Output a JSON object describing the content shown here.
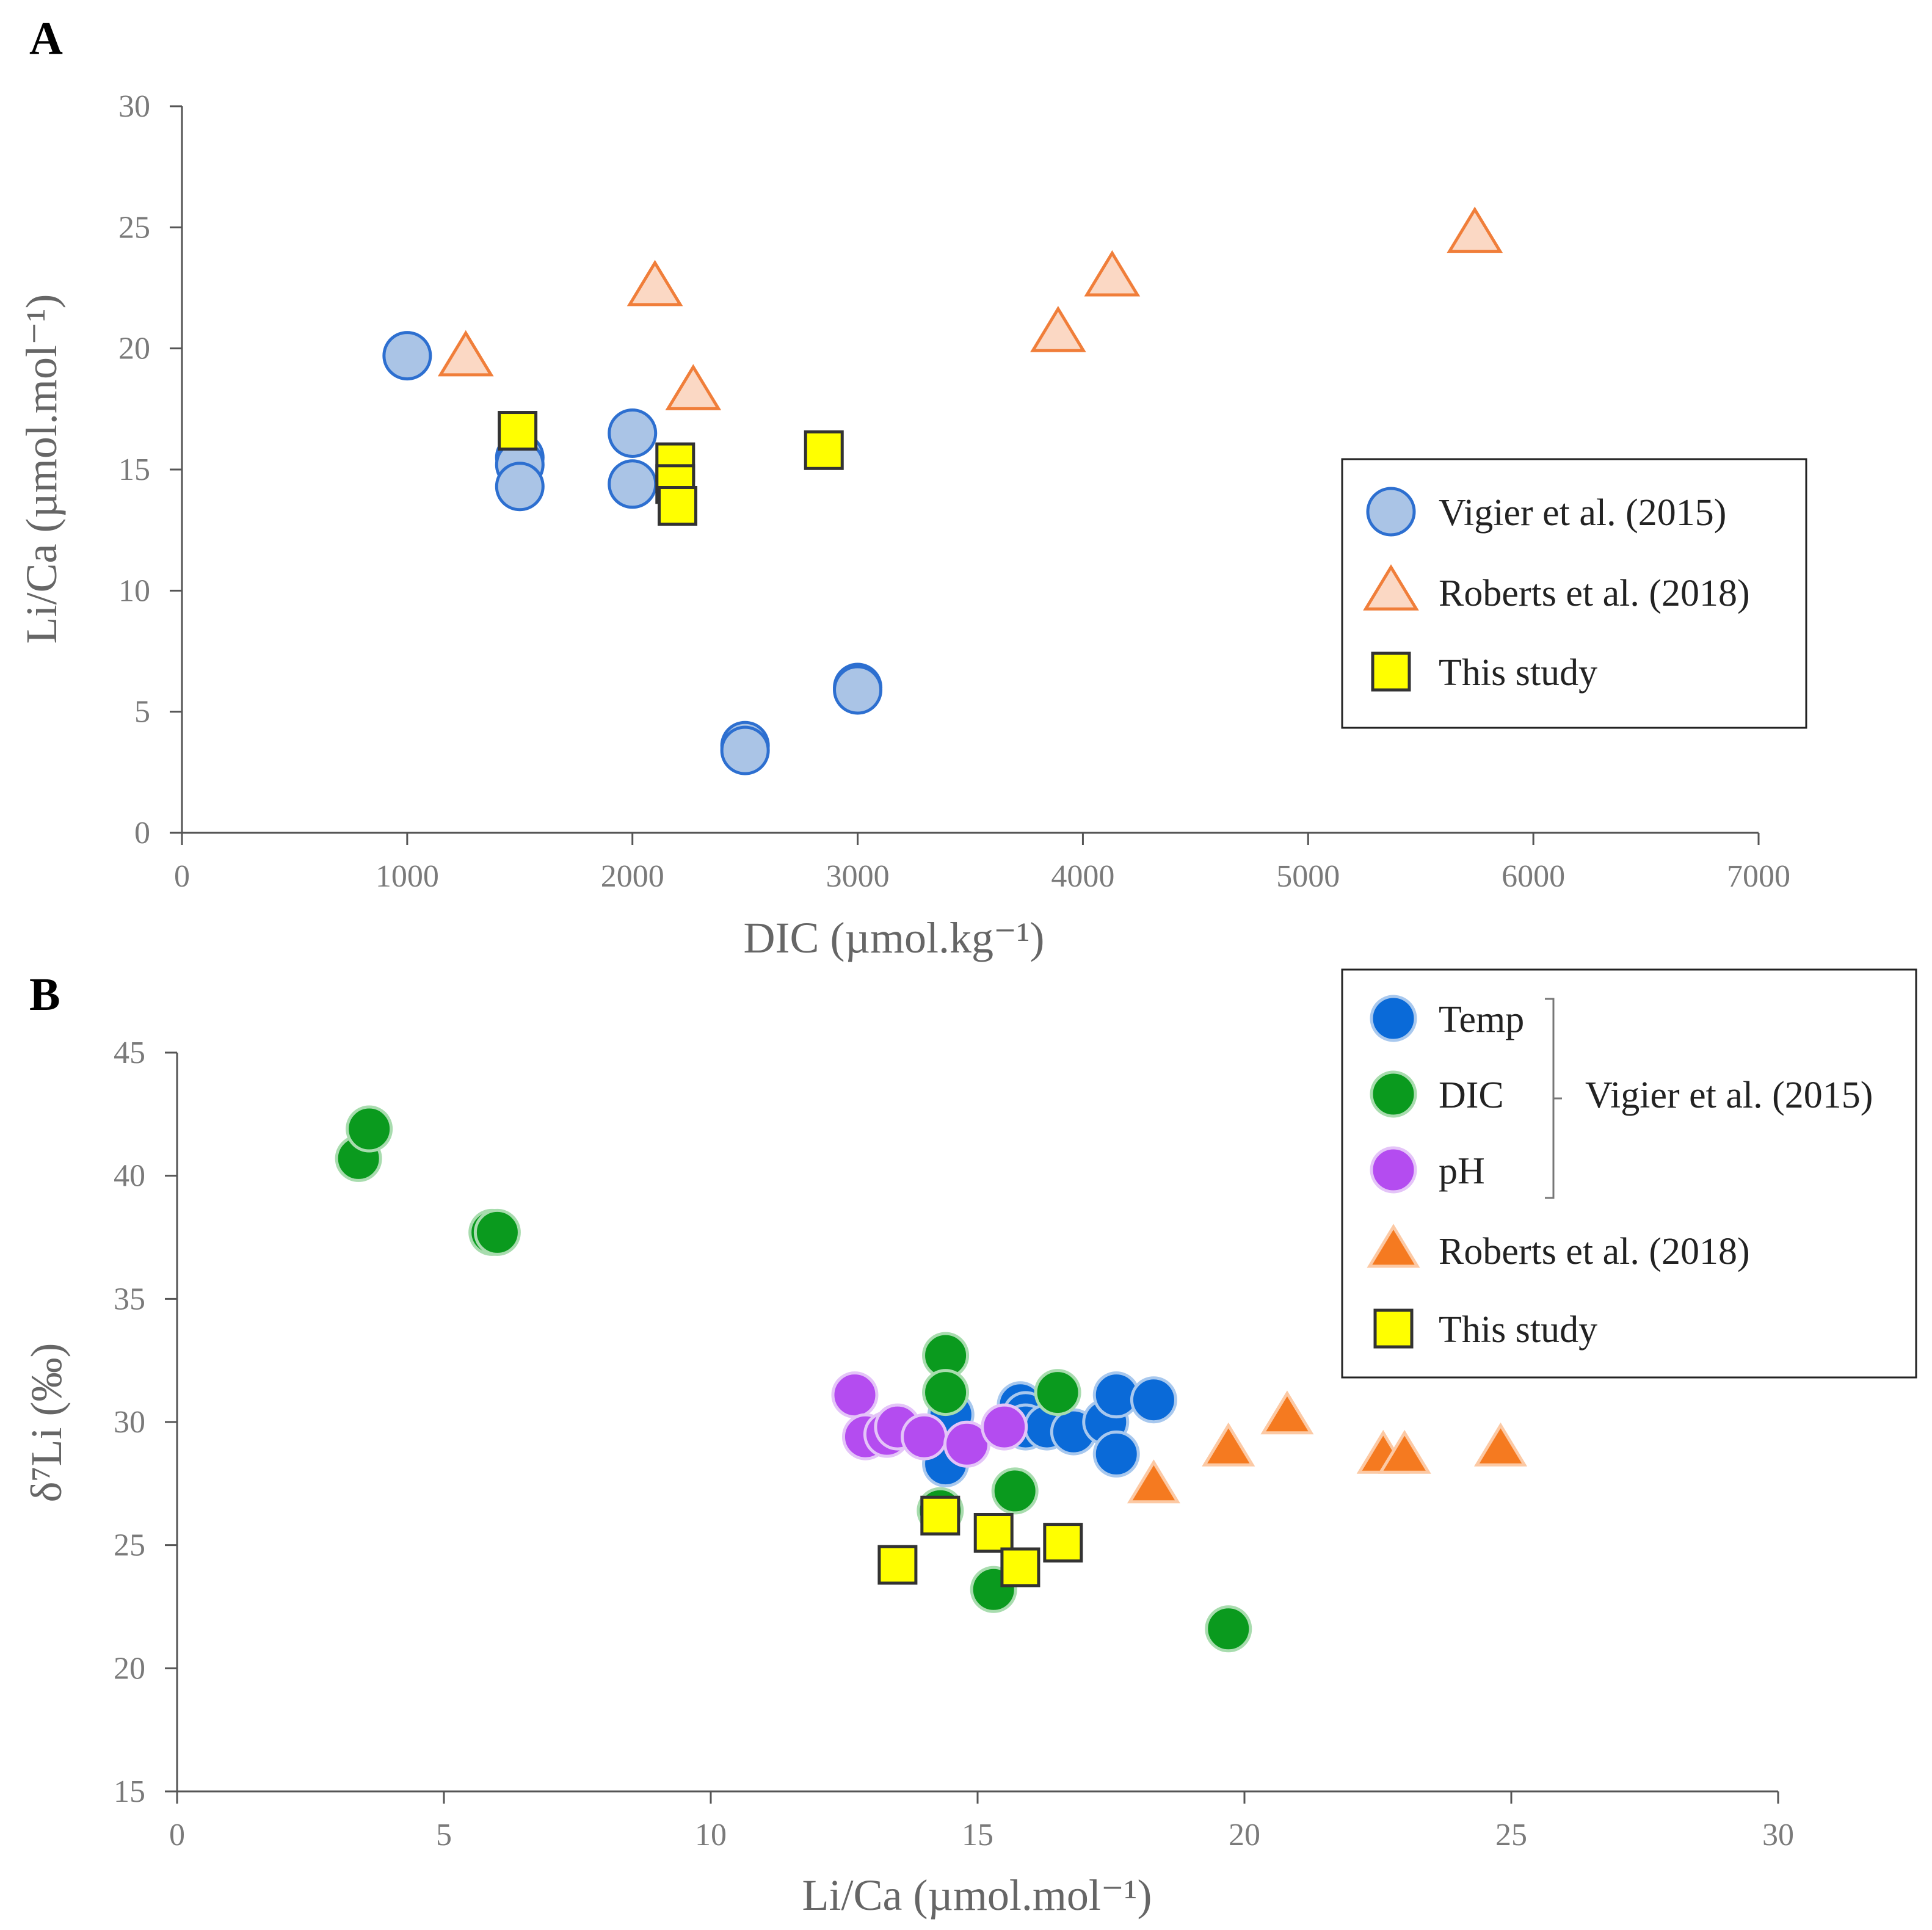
{
  "chart_data": [
    {
      "type": "scatter",
      "panel_label": "A",
      "xlabel": "DIC (µmol.kg⁻¹)",
      "ylabel": "Li/Ca (µmol.mol⁻¹)",
      "xlim": [
        0,
        7000
      ],
      "ylim": [
        0,
        30
      ],
      "xticks": [
        0,
        1000,
        2000,
        3000,
        4000,
        5000,
        6000,
        7000
      ],
      "yticks": [
        0,
        5,
        10,
        15,
        20,
        25,
        30
      ],
      "xtick_labels": [
        "0",
        "1000",
        "2000",
        "3000",
        "4000",
        "5000",
        "6000",
        "7000"
      ],
      "ytick_labels": [
        "0",
        "5",
        "10",
        "15",
        "20",
        "25",
        "30"
      ],
      "legend_position": "right",
      "series": [
        {
          "name": "Vigier et al. (2015)",
          "marker": "circle",
          "fill": "#aac4e6",
          "stroke": "#2d6fd0",
          "points": [
            [
              1000,
              19.7
            ],
            [
              1500,
              15.5
            ],
            [
              1500,
              15.2
            ],
            [
              1500,
              14.3
            ],
            [
              2000,
              16.5
            ],
            [
              2000,
              14.4
            ],
            [
              2500,
              3.6
            ],
            [
              2500,
              3.4
            ],
            [
              3000,
              6.0
            ],
            [
              3000,
              5.9
            ]
          ]
        },
        {
          "name": "Roberts et al. (2018)",
          "marker": "triangle",
          "fill": "#fbd8c4",
          "stroke": "#f07e3a",
          "points": [
            [
              1260,
              19.6
            ],
            [
              2100,
              22.5
            ],
            [
              2270,
              18.2
            ],
            [
              3890,
              20.6
            ],
            [
              4130,
              22.9
            ],
            [
              5740,
              24.7
            ]
          ]
        },
        {
          "name": "This study",
          "marker": "square",
          "fill": "#ffff00",
          "stroke": "#333333",
          "points": [
            [
              1490,
              16.6
            ],
            [
              2190,
              15.3
            ],
            [
              2190,
              14.4
            ],
            [
              2200,
              13.5
            ],
            [
              2850,
              15.8
            ]
          ]
        }
      ]
    },
    {
      "type": "scatter",
      "panel_label": "B",
      "xlabel": "Li/Ca (µmol.mol⁻¹)",
      "ylabel": "δ⁷Li (‰)",
      "xlim": [
        0,
        30
      ],
      "ylim": [
        15,
        45
      ],
      "xticks": [
        0,
        5,
        10,
        15,
        20,
        25,
        30
      ],
      "yticks": [
        15,
        20,
        25,
        30,
        35,
        40,
        45
      ],
      "xtick_labels": [
        "0",
        "5",
        "10",
        "15",
        "20",
        "25",
        "30"
      ],
      "ytick_labels": [
        "15",
        "20",
        "25",
        "30",
        "35",
        "40",
        "45"
      ],
      "legend_position": "top-right",
      "bracket_label": "Vigier et al. (2015)",
      "series": [
        {
          "name": "Temp",
          "group": "Vigier et al. (2015)",
          "marker": "circle",
          "fill": "#0a6ad8",
          "stroke": "#a8c8ee",
          "points": [
            [
              14.4,
              28.3
            ],
            [
              14.5,
              30.3
            ],
            [
              15.8,
              30.7
            ],
            [
              15.9,
              30.3
            ],
            [
              15.9,
              29.8
            ],
            [
              16.3,
              29.8
            ],
            [
              16.8,
              29.6
            ],
            [
              17.4,
              30.0
            ],
            [
              17.6,
              31.1
            ],
            [
              17.6,
              28.7
            ],
            [
              18.3,
              30.9
            ]
          ]
        },
        {
          "name": "DIC",
          "group": "Vigier et al. (2015)",
          "marker": "circle",
          "fill": "#0a9a1e",
          "stroke": "#a8dcae",
          "points": [
            [
              3.4,
              40.7
            ],
            [
              3.6,
              41.9
            ],
            [
              5.9,
              37.7
            ],
            [
              6.0,
              37.7
            ],
            [
              14.3,
              26.4
            ],
            [
              14.4,
              32.7
            ],
            [
              14.4,
              31.2
            ],
            [
              15.3,
              23.2
            ],
            [
              15.7,
              27.2
            ],
            [
              16.5,
              31.2
            ],
            [
              19.7,
              21.6
            ]
          ]
        },
        {
          "name": "pH",
          "group": "Vigier et al. (2015)",
          "marker": "circle",
          "fill": "#b44cf0",
          "stroke": "#e4c4f8",
          "points": [
            [
              12.7,
              31.1
            ],
            [
              12.9,
              29.4
            ],
            [
              13.3,
              29.5
            ],
            [
              13.5,
              29.8
            ],
            [
              14.0,
              29.4
            ],
            [
              14.8,
              29.1
            ],
            [
              15.5,
              29.8
            ]
          ]
        },
        {
          "name": "Roberts et al. (2018)",
          "marker": "triangle",
          "fill": "#f57a20",
          "stroke": "#fcc9a4",
          "points": [
            [
              18.3,
              27.4
            ],
            [
              19.7,
              28.9
            ],
            [
              20.8,
              30.2
            ],
            [
              22.6,
              28.6
            ],
            [
              23.0,
              28.6
            ],
            [
              24.8,
              28.9
            ]
          ]
        },
        {
          "name": "This study",
          "marker": "square",
          "fill": "#ffff00",
          "stroke": "#333333",
          "points": [
            [
              13.5,
              24.2
            ],
            [
              14.3,
              26.2
            ],
            [
              15.3,
              25.5
            ],
            [
              15.8,
              24.1
            ],
            [
              16.6,
              25.1
            ]
          ]
        }
      ]
    }
  ]
}
